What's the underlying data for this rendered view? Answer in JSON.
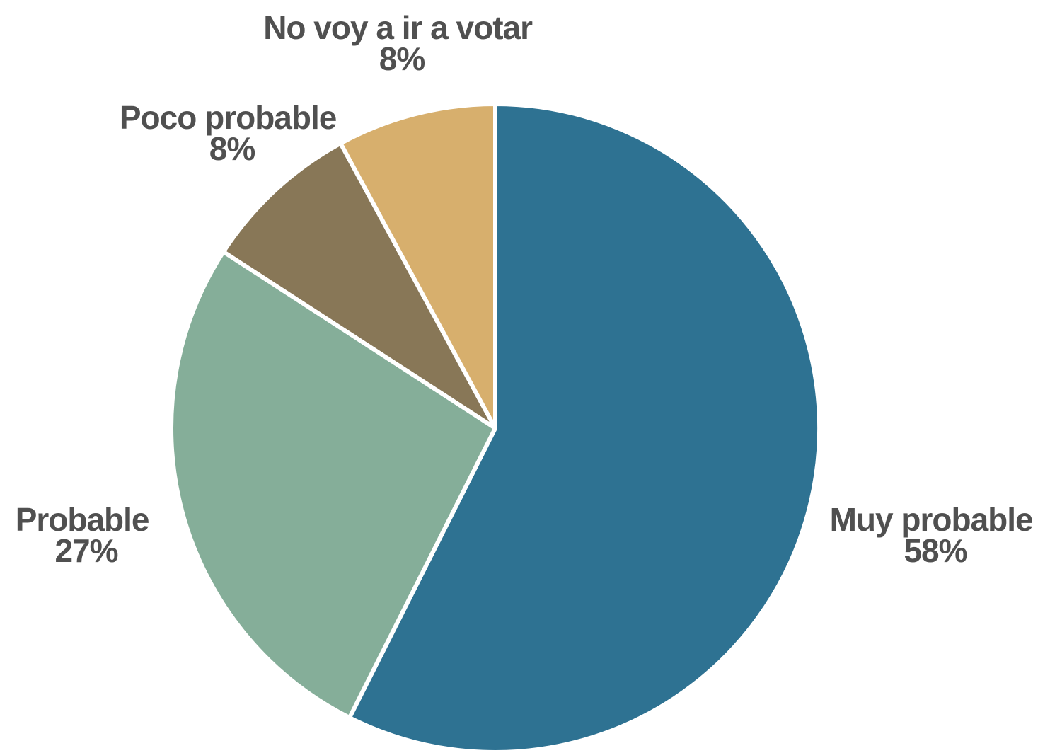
{
  "chart_data": {
    "type": "pie",
    "title": "",
    "slices": [
      {
        "label": "Muy probable",
        "value": 58,
        "value_label": "58%",
        "color": "#2E7292"
      },
      {
        "label": "Probable",
        "value": 27,
        "value_label": "27%",
        "color": "#85AE99"
      },
      {
        "label": "Poco probable",
        "value": 8,
        "value_label": "8%",
        "color": "#887757"
      },
      {
        "label": "No voy a ir a votar",
        "value": 8,
        "value_label": "8%",
        "color": "#D7AF6D"
      }
    ],
    "start": "12 o'clock",
    "direction": "clockwise",
    "slice_border_color": "#FFFFFF",
    "label_color": "#505050",
    "legend": "none"
  }
}
